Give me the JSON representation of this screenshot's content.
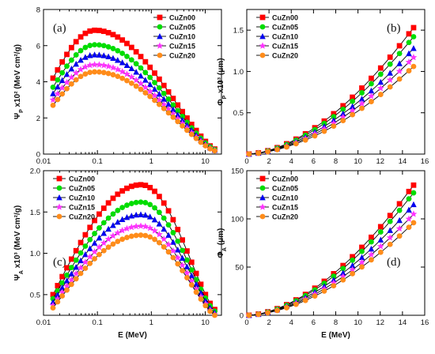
{
  "figure": {
    "series_names": [
      "CuZn00",
      "CuZn05",
      "CuZn10",
      "CuZn15",
      "CuZn20"
    ],
    "series_colors": [
      "#ff0000",
      "#00dd00",
      "#0000ee",
      "#ff33ff",
      "#ff8c1a"
    ],
    "series_markers": [
      "square",
      "circle",
      "triangle",
      "star",
      "circle"
    ]
  },
  "chart_data": [
    {
      "panel": "(a)",
      "type": "scatter",
      "xscale": "log",
      "xlim": [
        0.01,
        20
      ],
      "ylim": [
        0,
        8
      ],
      "xlabel": "",
      "ylabel": "Ψ_P x10² (MeV cm²/g)",
      "xticks": [
        "0.01",
        "0.1",
        "1",
        "10"
      ],
      "yticks": [
        "0",
        "2",
        "4",
        "6",
        "8"
      ],
      "legend_position": "top-right",
      "curve": "peak",
      "peak_x": 0.09,
      "x_range": [
        0.015,
        15
      ],
      "series": [
        {
          "name": "CuZn00",
          "peak": 6.85,
          "start": 4.2,
          "end": 0.28
        },
        {
          "name": "CuZn05",
          "peak": 6.05,
          "start": 3.7,
          "end": 0.25
        },
        {
          "name": "CuZn10",
          "peak": 5.5,
          "start": 3.35,
          "end": 0.22
        },
        {
          "name": "CuZn15",
          "peak": 4.95,
          "start": 3.0,
          "end": 0.2
        },
        {
          "name": "CuZn20",
          "peak": 4.55,
          "start": 2.7,
          "end": 0.18
        }
      ]
    },
    {
      "panel": "(b)",
      "type": "scatter",
      "xscale": "linear",
      "xlim": [
        0,
        16
      ],
      "ylim": [
        0,
        1.75
      ],
      "xlabel": "",
      "ylabel": "Φ_P x10³ (μm)",
      "xticks": [
        "0",
        "2",
        "4",
        "6",
        "8",
        "10",
        "12",
        "14",
        "16"
      ],
      "yticks": [
        "0.5",
        "1.0",
        "1.5"
      ],
      "legend_position": "top-left",
      "curve": "power",
      "x_range": [
        0.2,
        15
      ],
      "series": [
        {
          "name": "CuZn00",
          "end": 1.53
        },
        {
          "name": "CuZn05",
          "end": 1.42
        },
        {
          "name": "CuZn10",
          "end": 1.28
        },
        {
          "name": "CuZn15",
          "end": 1.17
        },
        {
          "name": "CuZn20",
          "end": 1.06
        }
      ]
    },
    {
      "panel": "(c)",
      "type": "scatter",
      "xscale": "log",
      "xlim": [
        0.01,
        20
      ],
      "ylim": [
        0.25,
        2.0
      ],
      "xlabel": "E (MeV)",
      "ylabel": "Ψ_A x10³ (MeV cm²/g)",
      "xticks": [
        "0.01",
        "0.1",
        "1",
        "10"
      ],
      "yticks": [
        "0.5",
        "1.0",
        "1.5",
        "2.0"
      ],
      "legend_position": "top-left",
      "curve": "peak",
      "peak_x": 0.65,
      "x_range": [
        0.015,
        15
      ],
      "series": [
        {
          "name": "CuZn00",
          "peak": 1.83,
          "start": 0.5,
          "end": 0.32
        },
        {
          "name": "CuZn05",
          "peak": 1.62,
          "start": 0.45,
          "end": 0.3
        },
        {
          "name": "CuZn10",
          "peak": 1.47,
          "start": 0.41,
          "end": 0.28
        },
        {
          "name": "CuZn15",
          "peak": 1.33,
          "start": 0.37,
          "end": 0.26
        },
        {
          "name": "CuZn20",
          "peak": 1.22,
          "start": 0.34,
          "end": 0.25
        }
      ]
    },
    {
      "panel": "(d)",
      "type": "scatter",
      "xscale": "linear",
      "xlim": [
        0,
        16
      ],
      "ylim": [
        0,
        150
      ],
      "xlabel": "E (MeV)",
      "ylabel": "Φ_A (μm)",
      "xticks": [
        "0",
        "2",
        "4",
        "6",
        "8",
        "10",
        "12",
        "14",
        "16"
      ],
      "yticks": [
        "0",
        "50",
        "100",
        "150"
      ],
      "legend_position": "top-left",
      "curve": "power",
      "x_range": [
        0.2,
        15
      ],
      "series": [
        {
          "name": "CuZn00",
          "end": 135
        },
        {
          "name": "CuZn05",
          "end": 127
        },
        {
          "name": "CuZn10",
          "end": 115
        },
        {
          "name": "CuZn15",
          "end": 105
        },
        {
          "name": "CuZn20",
          "end": 96
        }
      ]
    }
  ]
}
